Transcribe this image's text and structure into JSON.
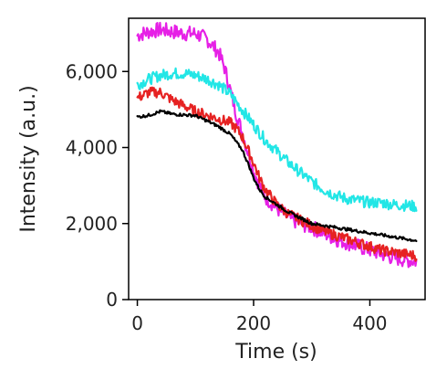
{
  "chart_data": {
    "type": "line",
    "xlabel": "Time (s)",
    "ylabel": "Intensity (a.u.)",
    "xlim": [
      -15,
      495
    ],
    "ylim": [
      0,
      7400
    ],
    "x_ticks": [
      {
        "value": 0,
        "label": "0"
      },
      {
        "value": 200,
        "label": "200"
      },
      {
        "value": 400,
        "label": "400"
      }
    ],
    "y_ticks": [
      {
        "value": 0,
        "label": "0"
      },
      {
        "value": 2000,
        "label": "2,000"
      },
      {
        "value": 4000,
        "label": "4,000"
      },
      {
        "value": 6000,
        "label": "6,000"
      }
    ],
    "grid": false,
    "legend": "none",
    "series": [
      {
        "color": "#e620e6",
        "noise": 200,
        "points": [
          [
            0,
            6950
          ],
          [
            20,
            7050
          ],
          [
            40,
            7100
          ],
          [
            60,
            7050
          ],
          [
            80,
            7000
          ],
          [
            100,
            7000
          ],
          [
            120,
            6850
          ],
          [
            140,
            6500
          ],
          [
            150,
            6100
          ],
          [
            160,
            5500
          ],
          [
            170,
            4900
          ],
          [
            180,
            4400
          ],
          [
            190,
            3900
          ],
          [
            200,
            3400
          ],
          [
            210,
            3000
          ],
          [
            220,
            2700
          ],
          [
            240,
            2400
          ],
          [
            260,
            2150
          ],
          [
            280,
            2000
          ],
          [
            300,
            1900
          ],
          [
            320,
            1750
          ],
          [
            340,
            1600
          ],
          [
            360,
            1500
          ],
          [
            380,
            1400
          ],
          [
            400,
            1300
          ],
          [
            420,
            1200
          ],
          [
            440,
            1100
          ],
          [
            460,
            1050
          ],
          [
            480,
            1000
          ]
        ]
      },
      {
        "color": "#22e6e6",
        "noise": 150,
        "points": [
          [
            0,
            5650
          ],
          [
            20,
            5800
          ],
          [
            40,
            5900
          ],
          [
            60,
            5950
          ],
          [
            80,
            5950
          ],
          [
            100,
            5900
          ],
          [
            120,
            5800
          ],
          [
            140,
            5650
          ],
          [
            160,
            5400
          ],
          [
            180,
            5000
          ],
          [
            200,
            4600
          ],
          [
            220,
            4200
          ],
          [
            240,
            3900
          ],
          [
            260,
            3600
          ],
          [
            280,
            3350
          ],
          [
            300,
            3100
          ],
          [
            320,
            2900
          ],
          [
            340,
            2750
          ],
          [
            360,
            2650
          ],
          [
            380,
            2600
          ],
          [
            400,
            2550
          ],
          [
            420,
            2550
          ],
          [
            440,
            2500
          ],
          [
            460,
            2480
          ],
          [
            480,
            2450
          ]
        ]
      },
      {
        "color": "#e62222",
        "noise": 140,
        "points": [
          [
            0,
            5300
          ],
          [
            20,
            5450
          ],
          [
            40,
            5450
          ],
          [
            60,
            5250
          ],
          [
            80,
            5100
          ],
          [
            100,
            4950
          ],
          [
            120,
            4850
          ],
          [
            140,
            4750
          ],
          [
            160,
            4650
          ],
          [
            170,
            4500
          ],
          [
            180,
            4300
          ],
          [
            190,
            3950
          ],
          [
            200,
            3600
          ],
          [
            210,
            3200
          ],
          [
            220,
            2900
          ],
          [
            240,
            2500
          ],
          [
            260,
            2250
          ],
          [
            280,
            2100
          ],
          [
            300,
            1950
          ],
          [
            320,
            1800
          ],
          [
            340,
            1700
          ],
          [
            360,
            1600
          ],
          [
            380,
            1500
          ],
          [
            400,
            1400
          ],
          [
            420,
            1300
          ],
          [
            440,
            1250
          ],
          [
            460,
            1200
          ],
          [
            480,
            1150
          ]
        ]
      },
      {
        "color": "#000000",
        "noise": 40,
        "points": [
          [
            0,
            4800
          ],
          [
            20,
            4850
          ],
          [
            40,
            4950
          ],
          [
            60,
            4880
          ],
          [
            80,
            4860
          ],
          [
            100,
            4840
          ],
          [
            120,
            4700
          ],
          [
            140,
            4550
          ],
          [
            160,
            4350
          ],
          [
            180,
            3950
          ],
          [
            190,
            3600
          ],
          [
            200,
            3200
          ],
          [
            210,
            2900
          ],
          [
            220,
            2700
          ],
          [
            240,
            2500
          ],
          [
            260,
            2300
          ],
          [
            280,
            2150
          ],
          [
            300,
            2000
          ],
          [
            320,
            1950
          ],
          [
            340,
            1900
          ],
          [
            360,
            1850
          ],
          [
            380,
            1800
          ],
          [
            400,
            1750
          ],
          [
            420,
            1700
          ],
          [
            440,
            1650
          ],
          [
            460,
            1600
          ],
          [
            480,
            1550
          ]
        ]
      }
    ]
  }
}
